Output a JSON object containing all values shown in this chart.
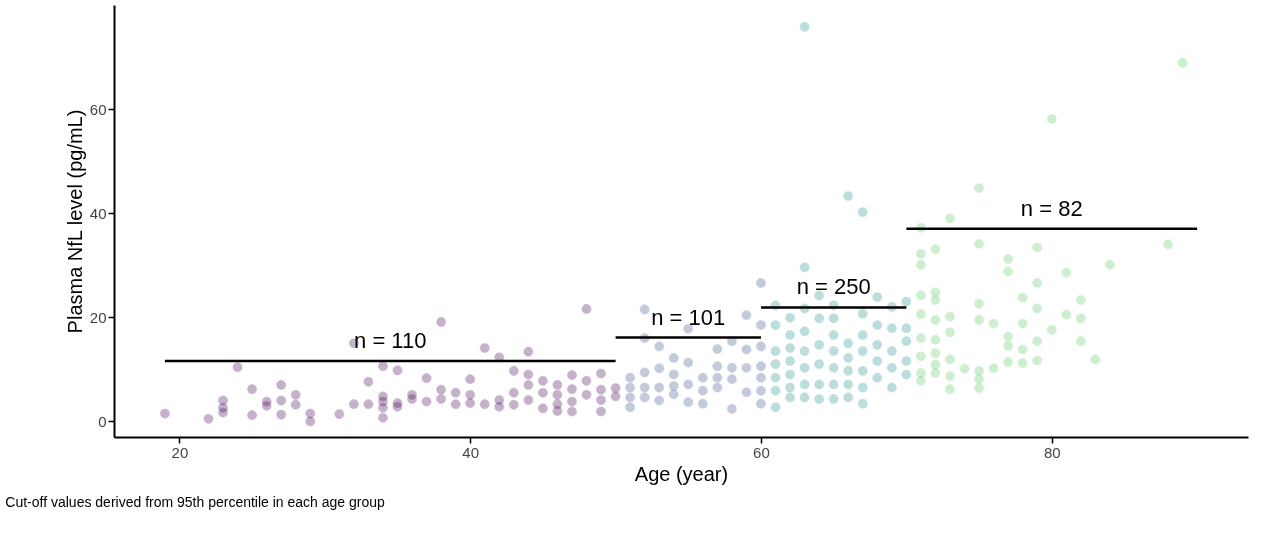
{
  "chart_data": {
    "type": "scatter",
    "xlabel": "Age (year)",
    "ylabel": "Plasma NfL level (pg/mL)",
    "xlim": [
      15.5,
      93.5
    ],
    "ylim": [
      -3,
      80
    ],
    "xticks": [
      20,
      40,
      60,
      80
    ],
    "yticks": [
      0,
      20,
      40,
      60
    ],
    "grid": false,
    "marker": "circle",
    "series": [
      {
        "color": "#440154",
        "x": [
          19,
          22,
          23,
          23,
          23,
          24,
          25,
          25,
          26,
          26,
          27,
          27,
          27,
          28,
          28,
          29,
          29,
          31,
          32,
          32,
          33,
          33,
          34,
          34,
          34,
          34,
          34,
          35,
          35,
          35,
          36,
          36,
          37,
          37,
          38,
          38,
          38,
          39,
          39,
          40,
          40,
          40,
          41,
          41,
          42,
          42,
          42,
          43,
          43,
          43,
          44,
          44,
          44,
          44,
          45,
          45,
          45,
          46,
          46,
          46,
          46,
          47,
          47,
          47,
          47,
          48,
          48,
          48,
          49,
          49,
          49,
          49,
          50,
          50
        ],
        "values": [
          1.5,
          0.5,
          4.0,
          2.6,
          1.7,
          10.4,
          6.2,
          1.2,
          3.8,
          3.0,
          7.0,
          4.0,
          1.3,
          5.1,
          3.2,
          1.5,
          0.0,
          1.4,
          15.0,
          3.3,
          7.6,
          3.3,
          10.6,
          4.8,
          3.8,
          2.6,
          0.7,
          9.8,
          3.5,
          2.8,
          5.1,
          4.3,
          8.3,
          3.8,
          19.1,
          6.1,
          4.3,
          5.5,
          3.3,
          8.1,
          5.1,
          3.5,
          14.1,
          3.3,
          12.3,
          4.1,
          2.8,
          9.7,
          5.5,
          3.2,
          13.4,
          9.0,
          7.0,
          4.1,
          7.8,
          5.5,
          2.5,
          7.0,
          5.1,
          3.3,
          2.0,
          8.9,
          6.2,
          3.8,
          1.9,
          21.6,
          7.8,
          5.1,
          9.2,
          6.1,
          4.1,
          1.9,
          6.4,
          4.8
        ]
      },
      {
        "color": "#3b528b",
        "x": [
          51,
          51,
          51,
          51,
          52,
          52,
          52,
          52,
          52,
          53,
          53,
          53,
          53,
          54,
          54,
          54,
          54,
          55,
          55,
          55,
          55,
          56,
          56,
          56,
          57,
          57,
          57,
          57,
          58,
          58,
          58,
          58,
          59,
          59,
          59,
          59,
          60,
          60,
          60,
          60,
          60,
          60,
          60
        ],
        "values": [
          8.4,
          6.5,
          4.6,
          2.7,
          21.5,
          16.0,
          9.4,
          6.5,
          4.6,
          14.4,
          10.2,
          6.5,
          4.0,
          12.2,
          9.0,
          6.8,
          5.2,
          17.8,
          11.3,
          7.1,
          3.7,
          8.4,
          5.9,
          3.4,
          13.9,
          10.6,
          8.4,
          6.5,
          15.4,
          10.3,
          8.1,
          2.4,
          20.4,
          13.8,
          10.3,
          5.6,
          26.6,
          18.5,
          14.4,
          10.6,
          8.4,
          5.9,
          3.4
        ]
      },
      {
        "color": "#21908c",
        "x": [
          61,
          61,
          61,
          61,
          61,
          61,
          61,
          62,
          62,
          62,
          62,
          62,
          62,
          62,
          63,
          63,
          63,
          63,
          63,
          63,
          63,
          63,
          64,
          64,
          64,
          64,
          64,
          64,
          65,
          65,
          65,
          65,
          65,
          65,
          65,
          66,
          66,
          66,
          66,
          66,
          66,
          67,
          67,
          67,
          67,
          67,
          67,
          67,
          68,
          68,
          68,
          68,
          68,
          69,
          69,
          69,
          69,
          69,
          70,
          70,
          70,
          70,
          70
        ],
        "values": [
          22.3,
          18.5,
          13.5,
          11.0,
          8.4,
          5.9,
          2.7,
          19.9,
          16.6,
          14.1,
          11.6,
          9.0,
          6.5,
          4.6,
          75.8,
          29.6,
          21.7,
          17.3,
          13.5,
          10.3,
          7.1,
          4.6,
          24.2,
          19.8,
          14.7,
          11.0,
          7.1,
          4.3,
          22.3,
          19.8,
          16.6,
          13.5,
          10.3,
          7.1,
          4.3,
          43.3,
          15.0,
          12.2,
          9.7,
          7.1,
          4.6,
          40.2,
          20.7,
          16.6,
          13.5,
          9.7,
          6.5,
          3.4,
          23.9,
          18.5,
          14.7,
          11.6,
          8.4,
          22.0,
          17.9,
          13.5,
          10.3,
          6.5,
          23.0,
          17.9,
          15.4,
          11.6,
          9.0
        ]
      },
      {
        "color": "#5dc863",
        "x": [
          71,
          71,
          71,
          71,
          71,
          71,
          71,
          71,
          71,
          72,
          72,
          72,
          72,
          72,
          72,
          72,
          72,
          73,
          73,
          73,
          73,
          73,
          73,
          74,
          75,
          75,
          75,
          75,
          75,
          75,
          75,
          76,
          76,
          77,
          77,
          77,
          77,
          77,
          78,
          78,
          78,
          78,
          79,
          79,
          79,
          79,
          79,
          80,
          80,
          81,
          81,
          82,
          82,
          82,
          83,
          84,
          88,
          89
        ],
        "values": [
          37.2,
          32.2,
          30.1,
          24.2,
          20.6,
          16.0,
          12.5,
          9.3,
          7.8,
          33.1,
          24.8,
          23.3,
          19.5,
          15.7,
          13.1,
          10.9,
          9.3,
          39.0,
          20.1,
          17.1,
          11.9,
          8.7,
          6.2,
          10.1,
          44.8,
          34.1,
          22.6,
          19.5,
          9.7,
          8.1,
          6.4,
          18.8,
          10.2,
          31.2,
          28.8,
          16.3,
          14.5,
          11.4,
          23.8,
          18.8,
          13.8,
          11.2,
          33.4,
          26.6,
          21.7,
          15.4,
          11.7,
          58.1,
          17.6,
          28.6,
          20.5,
          23.3,
          19.8,
          15.4,
          11.9,
          30.1,
          34.0,
          68.9
        ]
      },
      {
        "type": "line",
        "name": "n = 110",
        "marker": "none",
        "line_style": "solid",
        "color": "#000000",
        "x": [
          19,
          50
        ],
        "values": [
          11.6,
          11.6
        ]
      },
      {
        "type": "line",
        "name": "n = 101",
        "marker": "none",
        "line_style": "solid",
        "color": "#000000",
        "x": [
          50,
          60
        ],
        "values": [
          16.1,
          16.1
        ]
      },
      {
        "type": "line",
        "name": "n = 250",
        "marker": "none",
        "line_style": "solid",
        "color": "#000000",
        "x": [
          60,
          70
        ],
        "values": [
          21.9,
          21.9
        ]
      },
      {
        "type": "line",
        "name": "n = 82",
        "marker": "none",
        "line_style": "solid",
        "color": "#000000",
        "x": [
          70,
          90
        ],
        "values": [
          37.0,
          37.0
        ]
      }
    ],
    "annotations": [
      "Cut-off values derived from 95th percentile in each age group"
    ]
  }
}
